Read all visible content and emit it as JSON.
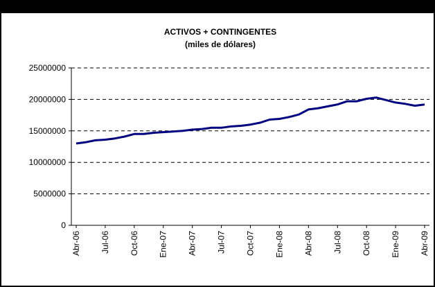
{
  "chart_data": {
    "type": "line",
    "title": "ACTIVOS + CONTINGENTES",
    "subtitle": "(miles de dólares)",
    "categories": [
      "Abr-06",
      null,
      null,
      "Jul-06",
      null,
      null,
      "Oct-06",
      null,
      null,
      "Ene-07",
      null,
      null,
      "Abr-07",
      null,
      null,
      "Jul-07",
      null,
      null,
      "Oct-07",
      null,
      null,
      "Ene-08",
      null,
      null,
      "Abr-08",
      null,
      null,
      "Jul-08",
      null,
      null,
      "Oct-08",
      null,
      null,
      "Ene-09",
      null,
      null,
      "Abr-09"
    ],
    "series": [
      {
        "name": "Activos + Contingentes",
        "color": "#000080",
        "values": [
          13000000,
          13200000,
          13500000,
          13600000,
          13800000,
          14100000,
          14500000,
          14500000,
          14700000,
          14800000,
          14900000,
          15000000,
          15200000,
          15300000,
          15500000,
          15500000,
          15700000,
          15800000,
          16000000,
          16300000,
          16800000,
          16900000,
          17200000,
          17600000,
          18400000,
          18600000,
          18900000,
          19200000,
          19700000,
          19700000,
          20100000,
          20300000,
          19900000,
          19500000,
          19300000,
          19000000,
          19200000
        ]
      }
    ],
    "ylim": [
      0,
      25000000
    ],
    "yticks": [
      0,
      5000000,
      10000000,
      15000000,
      20000000,
      25000000
    ],
    "grid": true
  }
}
